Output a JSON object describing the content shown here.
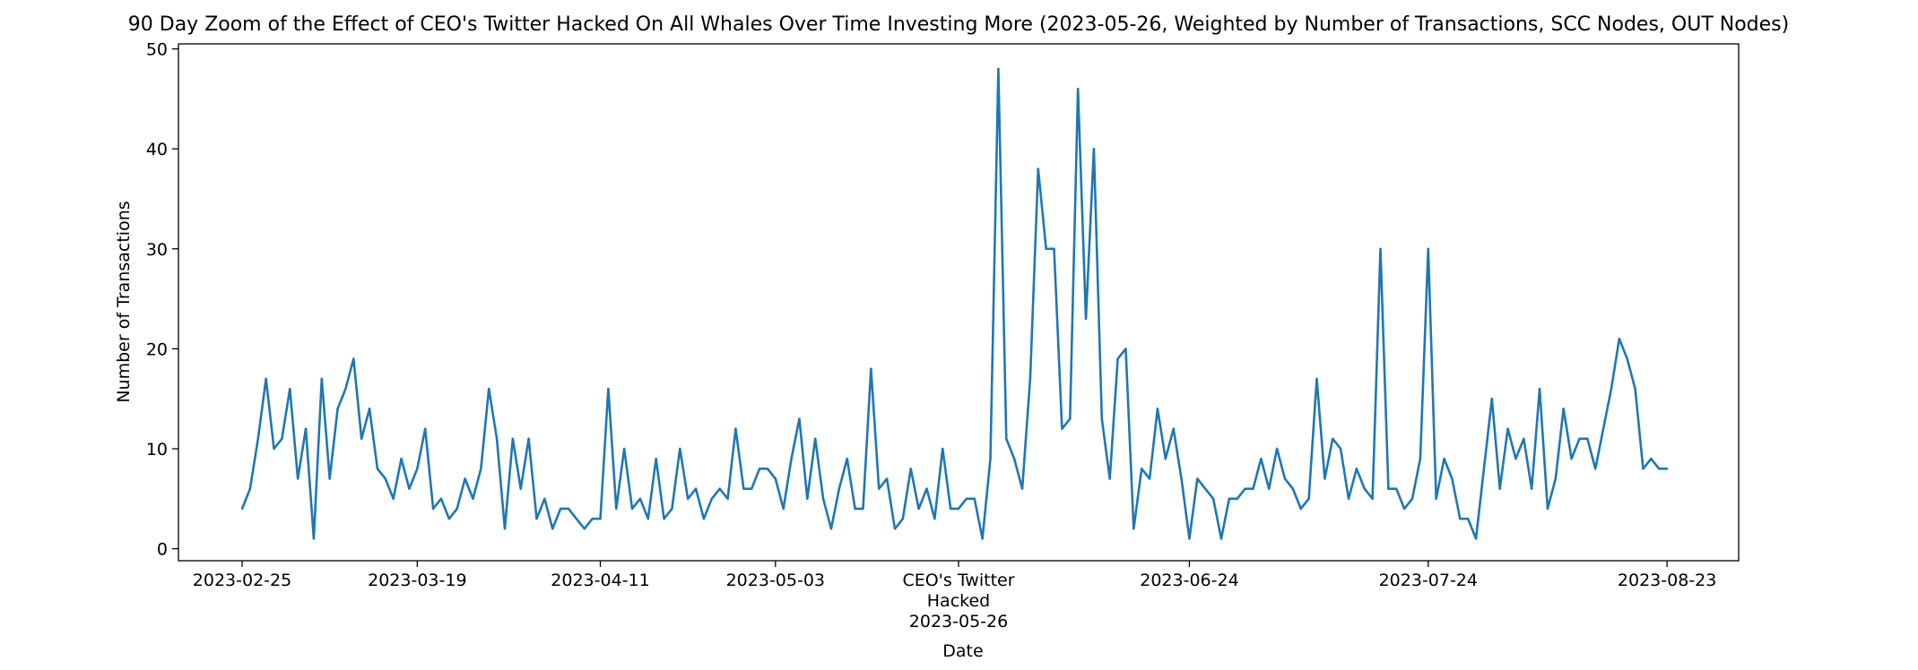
{
  "chart_data": {
    "type": "line",
    "title": "90 Day Zoom of the Effect of CEO's Twitter Hacked On All Whales Over Time Investing More (2023-05-26, Weighted by Number of Transactions, SCC Nodes, OUT Nodes)",
    "xlabel": "Date",
    "ylabel": "Number of Transactions",
    "x_start": "2023-02-25",
    "x_end": "2023-08-23",
    "xlim": [
      "2023-02-17",
      "2023-09-01"
    ],
    "ylim": [
      -1.2,
      50.5
    ],
    "grid": false,
    "line_color": "#1f77b4",
    "y_ticks": [
      0,
      10,
      20,
      30,
      40,
      50
    ],
    "x_ticks": [
      {
        "date": "2023-02-25",
        "label": "2023-02-25"
      },
      {
        "date": "2023-03-19",
        "label": "2023-03-19"
      },
      {
        "date": "2023-04-11",
        "label": "2023-04-11"
      },
      {
        "date": "2023-05-03",
        "label": "2023-05-03"
      },
      {
        "date": "2023-05-26",
        "label": "CEO's Twitter\nHacked\n2023-05-26"
      },
      {
        "date": "2023-06-24",
        "label": "2023-06-24"
      },
      {
        "date": "2023-07-24",
        "label": "2023-07-24"
      },
      {
        "date": "2023-08-23",
        "label": "2023-08-23"
      }
    ],
    "series": [
      {
        "values": [
          4,
          6,
          11,
          17,
          10,
          11,
          16,
          7,
          12,
          1,
          17,
          7,
          14,
          16,
          19,
          11,
          14,
          8,
          7,
          5,
          9,
          6,
          8,
          12,
          4,
          5,
          3,
          4,
          7,
          5,
          8,
          16,
          11,
          2,
          11,
          6,
          11,
          3,
          5,
          2,
          4,
          4,
          3,
          2,
          3,
          3,
          16,
          4,
          10,
          4,
          5,
          3,
          9,
          3,
          4,
          10,
          5,
          6,
          3,
          5,
          6,
          5,
          12,
          6,
          6,
          8,
          8,
          7,
          4,
          9,
          13,
          5,
          11,
          5,
          2,
          6,
          9,
          4,
          4,
          18,
          6,
          7,
          2,
          3,
          8,
          4,
          6,
          3,
          10,
          4,
          4,
          5,
          5,
          1,
          9,
          48,
          11,
          9,
          6,
          17,
          38,
          30,
          30,
          12,
          13,
          46,
          23,
          40,
          13,
          7,
          19,
          20,
          2,
          8,
          7,
          14,
          9,
          12,
          7,
          1,
          7,
          6,
          5,
          1,
          5,
          5,
          6,
          6,
          9,
          6,
          10,
          7,
          6,
          4,
          5,
          17,
          7,
          11,
          10,
          5,
          8,
          6,
          5,
          30,
          6,
          6,
          4,
          5,
          9,
          30,
          5,
          9,
          7,
          3,
          3,
          1,
          8,
          15,
          6,
          12,
          9,
          11,
          6,
          16,
          4,
          7,
          14,
          9,
          11,
          11,
          8,
          12,
          16,
          21,
          19,
          16,
          8,
          9,
          8,
          8
        ]
      }
    ]
  }
}
